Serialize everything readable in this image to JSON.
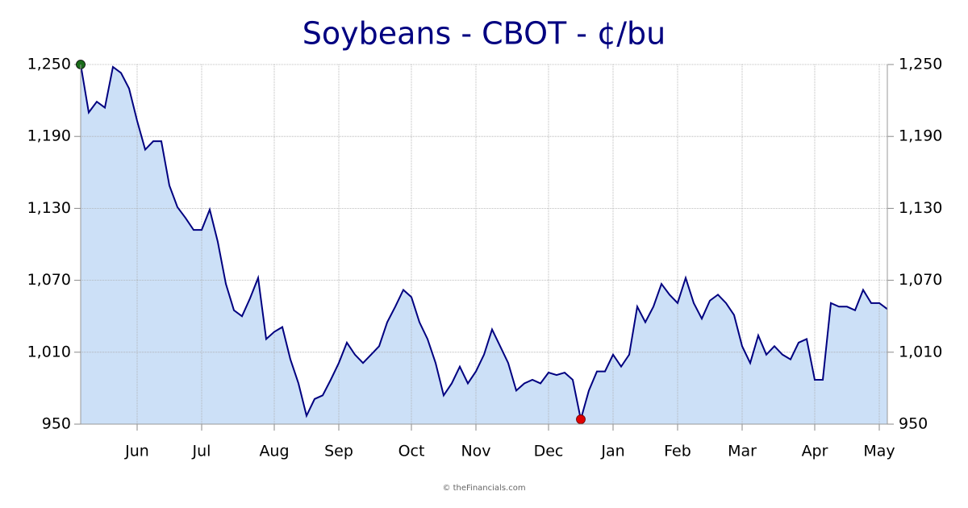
{
  "chart_data": {
    "type": "area",
    "title": "Soybeans - CBOT - ¢/bu",
    "footer": "© theFinancials.com",
    "categories": [
      null,
      null,
      null,
      null,
      null,
      null,
      null,
      "Jun",
      null,
      null,
      null,
      null,
      null,
      null,
      null,
      "Jul",
      null,
      null,
      null,
      null,
      null,
      null,
      null,
      null,
      "Aug",
      null,
      null,
      null,
      null,
      null,
      null,
      null,
      "Sep",
      null,
      null,
      null,
      null,
      null,
      null,
      null,
      null,
      "Oct",
      null,
      null,
      null,
      null,
      null,
      null,
      null,
      "Nov",
      null,
      null,
      null,
      null,
      null,
      null,
      null,
      null,
      "Dec",
      null,
      null,
      null,
      null,
      null,
      null,
      null,
      "Jan",
      null,
      null,
      null,
      null,
      null,
      null,
      null,
      "Feb",
      null,
      null,
      null,
      null,
      null,
      null,
      null,
      "Mar",
      null,
      null,
      null,
      null,
      null,
      null,
      null,
      null,
      "Apr",
      null,
      null,
      null,
      null,
      null,
      null,
      null,
      "May",
      null
    ],
    "values": [
      1250,
      1210,
      1219,
      1214,
      1248,
      1243,
      1230,
      1203,
      1179,
      1186,
      1186,
      1149,
      1131,
      1122,
      1112,
      1112,
      1129,
      1102,
      1067,
      1045,
      1040,
      1055,
      1072,
      1021,
      1027,
      1031,
      1004,
      984,
      957,
      971,
      974,
      987,
      1001,
      1018,
      1008,
      1001,
      1008,
      1015,
      1035,
      1048,
      1062,
      1056,
      1035,
      1021,
      1001,
      974,
      984,
      998,
      984,
      994,
      1008,
      1029,
      1015,
      1001,
      978,
      984,
      987,
      984,
      993,
      991,
      993,
      987,
      954,
      978,
      994,
      994,
      1008,
      998,
      1008,
      1048,
      1035,
      1048,
      1067,
      1058,
      1051,
      1072,
      1051,
      1038,
      1053,
      1058,
      1051,
      1041,
      1015,
      1001,
      1024,
      1008,
      1015,
      1008,
      1004,
      1018,
      1021,
      987,
      987,
      1051,
      1048,
      1048,
      1045,
      1062,
      1051,
      1051,
      1046
    ],
    "color": "#000080",
    "fill_color": "#cce0f7",
    "start_marker_color": "#1a6b1a",
    "low_marker_color": "#e00000",
    "ylim": [
      950,
      1250
    ],
    "yticks": [
      950,
      {
        "value": 1010,
        "label": "1,010"
      },
      {
        "value": 1070,
        "label": "1,070"
      },
      {
        "value": 1130,
        "label": "1,130"
      },
      {
        "value": 1190,
        "label": "1,190"
      },
      {
        "value": 1250,
        "label": "1,250"
      }
    ],
    "grid": true
  }
}
